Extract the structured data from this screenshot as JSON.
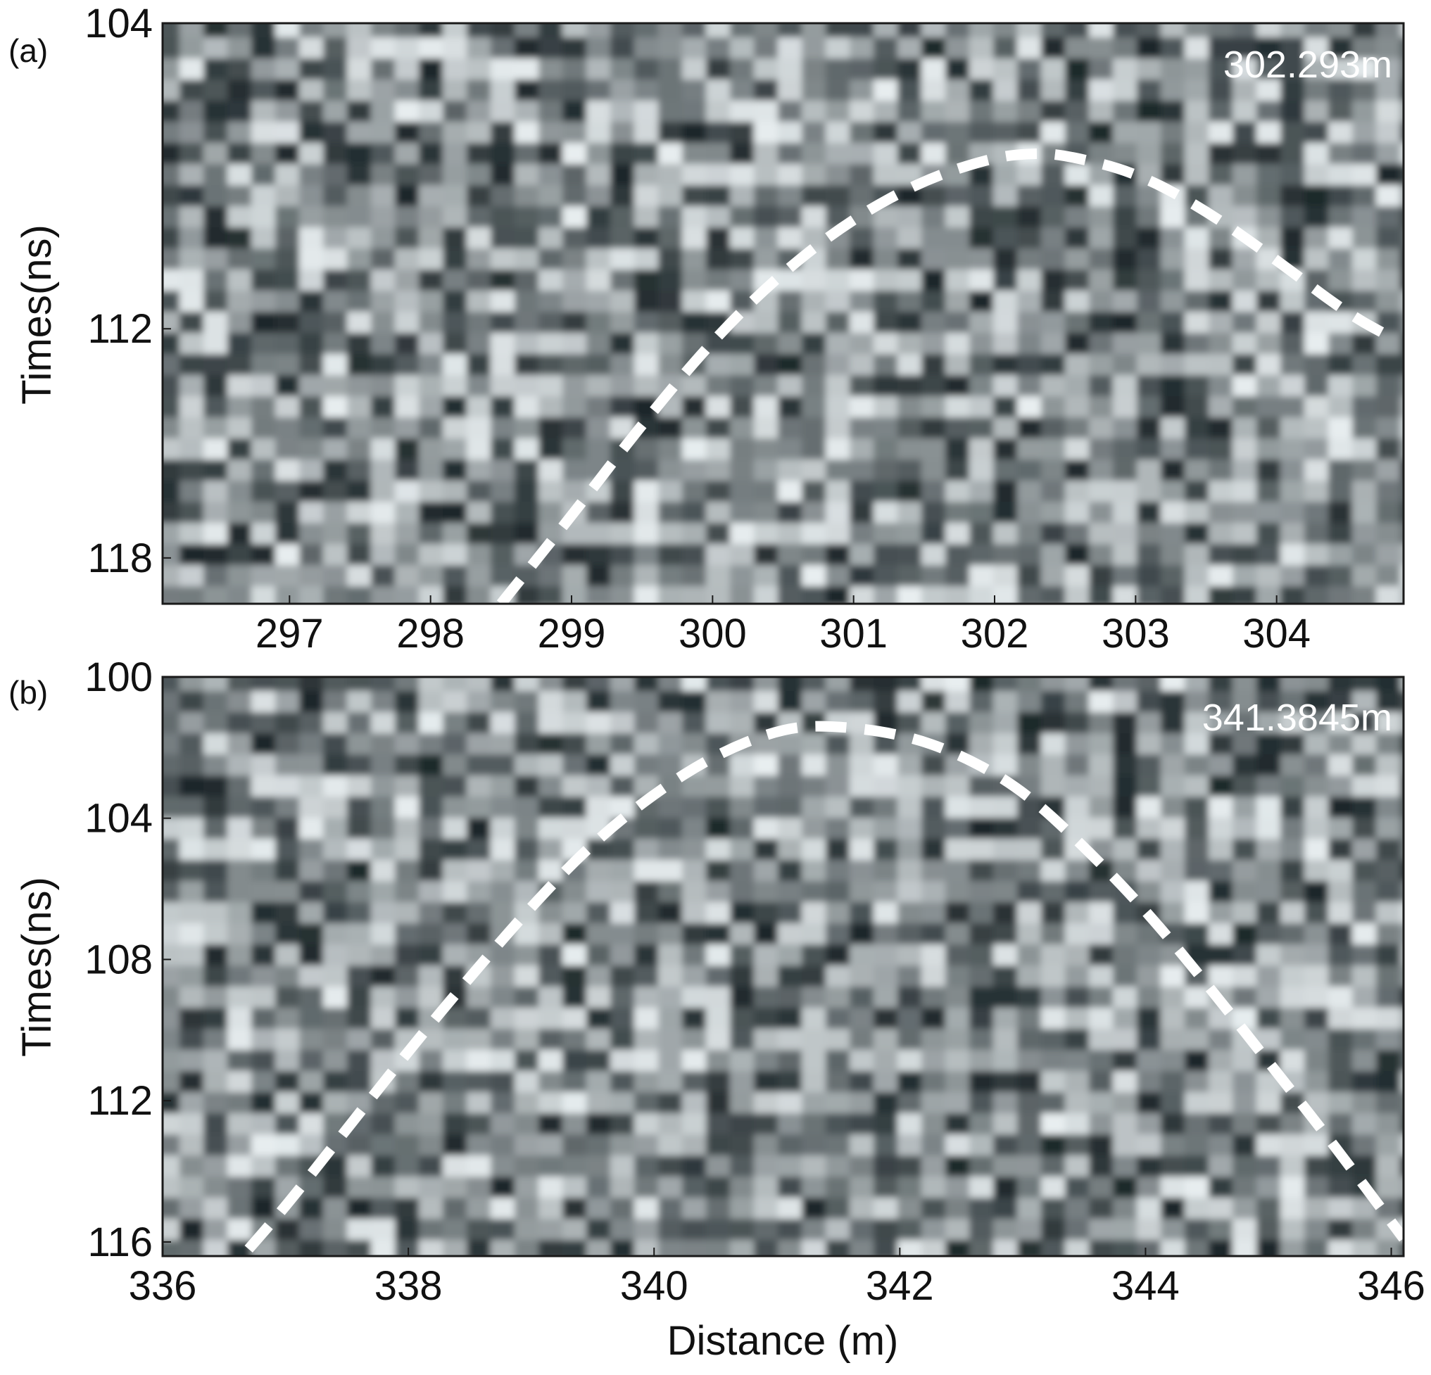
{
  "colors": {
    "background": "#ffffff",
    "dashed_curve": "#ffffff",
    "radargram_dark": "#1c2629",
    "radargram_light": "#e8eef0",
    "frame": "#1a1a1a"
  },
  "chart_data": [
    {
      "type": "heatmap",
      "panel_label": "(a)",
      "title": "",
      "annotation": "302.293m",
      "xlabel": "",
      "ylabel": "Times(ns)",
      "xlim": [
        296.1,
        304.9
      ],
      "ylim": [
        104,
        119.2
      ],
      "y_inverted": true,
      "x_ticks": [
        297,
        298,
        299,
        300,
        301,
        302,
        303,
        304
      ],
      "y_ticks": [
        104,
        112,
        118
      ],
      "colormap": "grayscale",
      "grid": false,
      "hyperbola": {
        "style": "white dashed",
        "apex_distance": 302.29,
        "points": [
          [
            298.5,
            119.2
          ],
          [
            299.0,
            116.9
          ],
          [
            299.5,
            114.5
          ],
          [
            300.0,
            112.3
          ],
          [
            300.5,
            110.5
          ],
          [
            301.0,
            109.1
          ],
          [
            301.5,
            108.1
          ],
          [
            302.0,
            107.5
          ],
          [
            302.29,
            107.4
          ],
          [
            302.5,
            107.45
          ],
          [
            303.0,
            107.9
          ],
          [
            303.5,
            108.9
          ],
          [
            304.0,
            110.2
          ],
          [
            304.5,
            111.6
          ],
          [
            304.85,
            112.3
          ]
        ]
      }
    },
    {
      "type": "heatmap",
      "panel_label": "(b)",
      "title": "",
      "annotation": "341.3845m",
      "xlabel": "Distance (m)",
      "ylabel": "Times(ns)",
      "xlim": [
        336,
        346.1
      ],
      "ylim": [
        100,
        116.4
      ],
      "y_inverted": true,
      "x_ticks": [
        336,
        338,
        340,
        342,
        344,
        346
      ],
      "y_ticks": [
        100,
        104,
        108,
        112,
        116
      ],
      "colormap": "grayscale",
      "grid": false,
      "hyperbola": {
        "style": "white dashed",
        "apex_distance": 341.38,
        "points": [
          [
            336.7,
            116.2
          ],
          [
            337.0,
            115.0
          ],
          [
            337.5,
            112.8
          ],
          [
            338.0,
            110.6
          ],
          [
            338.5,
            108.5
          ],
          [
            339.0,
            106.5
          ],
          [
            339.5,
            104.7
          ],
          [
            340.0,
            103.3
          ],
          [
            340.5,
            102.2
          ],
          [
            341.0,
            101.5
          ],
          [
            341.38,
            101.35
          ],
          [
            342.0,
            101.6
          ],
          [
            342.5,
            102.2
          ],
          [
            343.0,
            103.2
          ],
          [
            343.5,
            104.8
          ],
          [
            344.0,
            106.6
          ],
          [
            344.5,
            108.7
          ],
          [
            345.0,
            110.9
          ],
          [
            345.5,
            113.1
          ],
          [
            346.1,
            115.9
          ]
        ]
      }
    }
  ]
}
